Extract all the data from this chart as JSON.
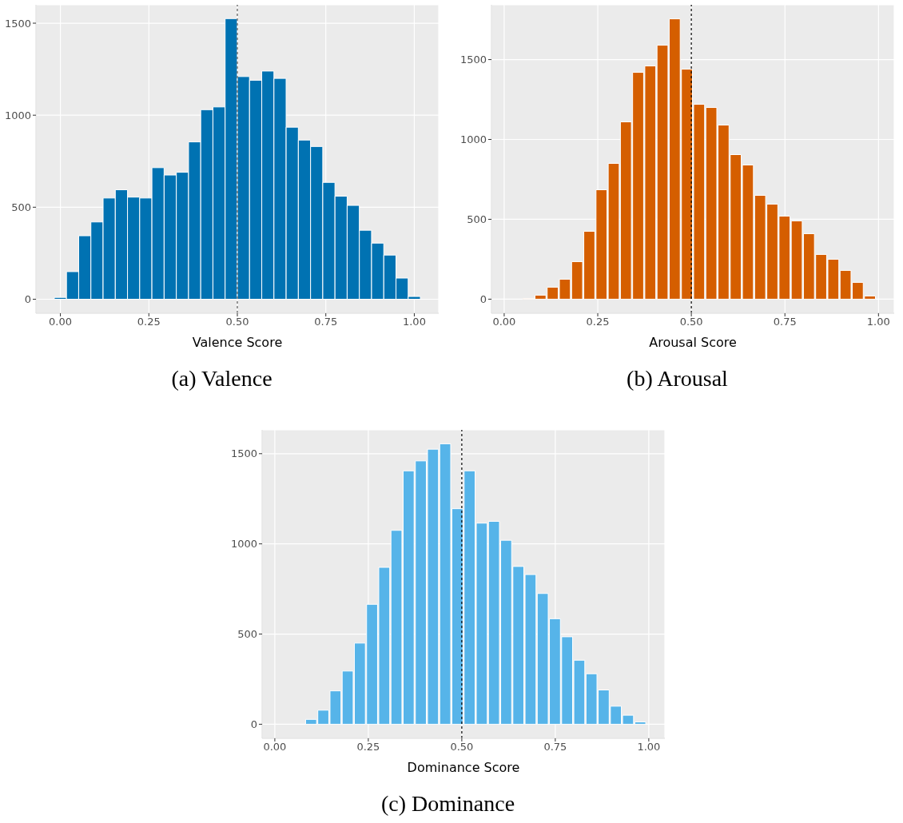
{
  "chart_data": [
    {
      "type": "histogram",
      "xlabel": "Valence Score",
      "annotations": [
        "(a) Valence"
      ],
      "color": "#0072b2",
      "bins": [
        -0.0172,
        0.0172,
        0.0517,
        0.0862,
        0.1207,
        0.1552,
        0.1897,
        0.2241,
        0.2586,
        0.2931,
        0.3276,
        0.3621,
        0.3966,
        0.431,
        0.4655,
        0.5,
        0.5345,
        0.569,
        0.6034,
        0.6379,
        0.6724,
        0.7069,
        0.7414,
        0.7759,
        0.8103,
        0.8448,
        0.8793,
        0.9138,
        0.9483,
        0.9828,
        1.0172
      ],
      "values": [
        10,
        150,
        345,
        420,
        550,
        595,
        555,
        550,
        715,
        675,
        690,
        855,
        1030,
        1045,
        1525,
        1210,
        1190,
        1240,
        1200,
        935,
        865,
        830,
        635,
        560,
        510,
        375,
        305,
        240,
        115,
        15
      ],
      "xlim": [
        -0.069,
        1.069
      ],
      "ylim": [
        -76,
        1600
      ],
      "xticks": [
        {
          "value": 0,
          "label": "0.00"
        },
        {
          "value": 0.25,
          "label": "0.25"
        },
        {
          "value": 0.5,
          "label": "0.50"
        },
        {
          "value": 0.75,
          "label": "0.75"
        },
        {
          "value": 1,
          "label": "1.00"
        }
      ],
      "yticks": [
        0,
        500,
        1000,
        1500
      ],
      "grid": true,
      "ref_lines": [
        {
          "axis": "x",
          "value": 0.5,
          "color": "#555555",
          "line_style": "dashed"
        }
      ]
    },
    {
      "type": "histogram",
      "xlabel": "Arousal Score",
      "annotations": [
        "(b) Arousal"
      ],
      "color": "#d55e00",
      "bins": [
        0.015,
        0.0476,
        0.0802,
        0.1128,
        0.1454,
        0.178,
        0.2106,
        0.2432,
        0.2758,
        0.3084,
        0.341,
        0.3736,
        0.4062,
        0.4388,
        0.4714,
        0.504,
        0.5366,
        0.5692,
        0.6018,
        0.6344,
        0.667,
        0.6996,
        0.7322,
        0.7648,
        0.7974,
        0.83,
        0.8626,
        0.8952,
        0.9278,
        0.9604,
        0.993
      ],
      "values": [
        null,
        5,
        25,
        75,
        125,
        235,
        425,
        685,
        850,
        1110,
        1420,
        1460,
        1590,
        1755,
        1440,
        1220,
        1200,
        1090,
        905,
        840,
        650,
        595,
        520,
        490,
        410,
        280,
        250,
        180,
        105,
        20
      ],
      "xlim": [
        -0.034,
        1.042
      ],
      "ylim": [
        -88,
        1843
      ],
      "xticks": [
        {
          "value": 0,
          "label": "0.00"
        },
        {
          "value": 0.25,
          "label": "0.25"
        },
        {
          "value": 0.5,
          "label": "0.50"
        },
        {
          "value": 0.75,
          "label": "0.75"
        },
        {
          "value": 1,
          "label": "1.00"
        }
      ],
      "yticks": [
        0,
        500,
        1000,
        1500
      ],
      "grid": true,
      "ref_lines": [
        {
          "axis": "x",
          "value": 0.5,
          "color": "#000000",
          "line_style": "dashed"
        }
      ]
    },
    {
      "type": "histogram",
      "xlabel": "Dominance Score",
      "annotations": [
        "(c) Dominance"
      ],
      "color": "#56b4e9",
      "bins": [
        0.015,
        0.0476,
        0.0802,
        0.1128,
        0.1454,
        0.178,
        0.2106,
        0.2432,
        0.2758,
        0.3084,
        0.341,
        0.3736,
        0.4062,
        0.4388,
        0.4714,
        0.504,
        0.5366,
        0.5692,
        0.6018,
        0.6344,
        0.667,
        0.6996,
        0.7322,
        0.7648,
        0.7974,
        0.83,
        0.8626,
        0.8952,
        0.9278,
        0.9604,
        0.993
      ],
      "values": [
        null,
        null,
        27,
        78,
        185,
        295,
        450,
        665,
        870,
        1075,
        1405,
        1460,
        1525,
        1555,
        1195,
        1405,
        1115,
        1125,
        1020,
        875,
        830,
        725,
        585,
        485,
        355,
        280,
        190,
        100,
        50,
        13
      ],
      "xlim": [
        -0.034,
        1.043
      ],
      "ylim": [
        -78,
        1632
      ],
      "xticks": [
        {
          "value": 0,
          "label": "0.00"
        },
        {
          "value": 0.25,
          "label": "0.25"
        },
        {
          "value": 0.5,
          "label": "0.50"
        },
        {
          "value": 0.75,
          "label": "0.75"
        },
        {
          "value": 1,
          "label": "1.00"
        }
      ],
      "yticks": [
        0,
        500,
        1000,
        1500
      ],
      "grid": true,
      "ref_lines": [
        {
          "axis": "x",
          "value": 0.5,
          "color": "#000000",
          "line_style": "dashed"
        }
      ]
    }
  ]
}
